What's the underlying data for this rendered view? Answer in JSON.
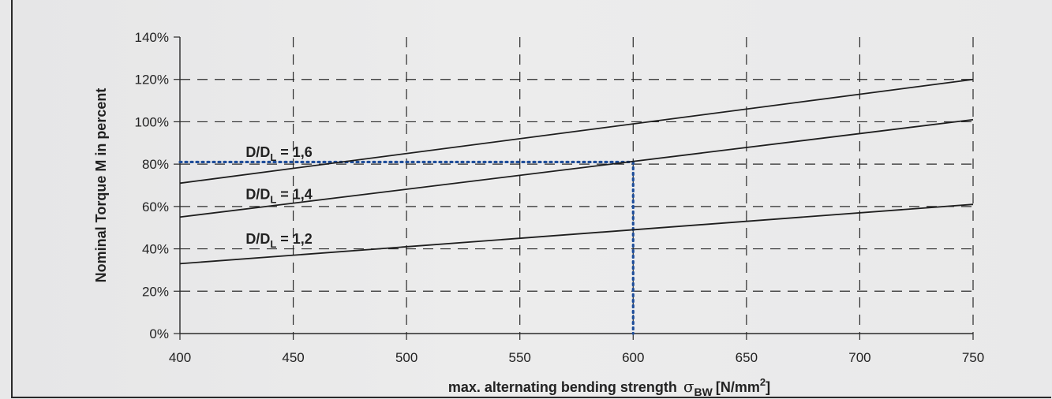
{
  "chart_data": {
    "type": "line",
    "xlabel_main": "max. alternating bending strength",
    "xlabel_symbol": "σ",
    "xlabel_sub": "BW",
    "xlabel_unit_pre": "[N/mm",
    "xlabel_unit_sup": "2",
    "xlabel_unit_post": "]",
    "ylabel": "Nominal Torque M in percent",
    "xlim": [
      400,
      750
    ],
    "ylim": [
      0,
      140
    ],
    "x_ticks": [
      400,
      450,
      500,
      550,
      600,
      650,
      700,
      750
    ],
    "y_ticks": [
      0,
      20,
      40,
      60,
      80,
      100,
      120,
      140
    ],
    "y_tick_labels": [
      "0%",
      "20%",
      "40%",
      "60%",
      "80%",
      "100%",
      "120%",
      "140%"
    ],
    "grid": true,
    "series": [
      {
        "label_main": "D/D",
        "label_sub": "L",
        "label_post": " = 1,6",
        "x": [
          400,
          750
        ],
        "y": [
          71,
          120
        ],
        "label_at": [
          452,
          86
        ]
      },
      {
        "label_main": "D/D",
        "label_sub": "L",
        "label_post": " = 1,4",
        "x": [
          400,
          750
        ],
        "y": [
          55,
          101
        ],
        "label_at": [
          452,
          66
        ]
      },
      {
        "label_main": "D/D",
        "label_sub": "L",
        "label_post": " = 1,2",
        "x": [
          400,
          750
        ],
        "y": [
          33,
          61
        ],
        "label_at": [
          452,
          45
        ]
      }
    ],
    "reference_lines": [
      {
        "x": [
          400,
          600
        ],
        "y": [
          81,
          81
        ],
        "color": "#1f4e9a"
      },
      {
        "x": [
          600,
          600
        ],
        "y": [
          81,
          0
        ],
        "color": "#1f4e9a"
      }
    ],
    "colors": {
      "line": "#1e1e1e",
      "grid": "#2a2a2a",
      "reference": "#1f4e9a"
    }
  }
}
